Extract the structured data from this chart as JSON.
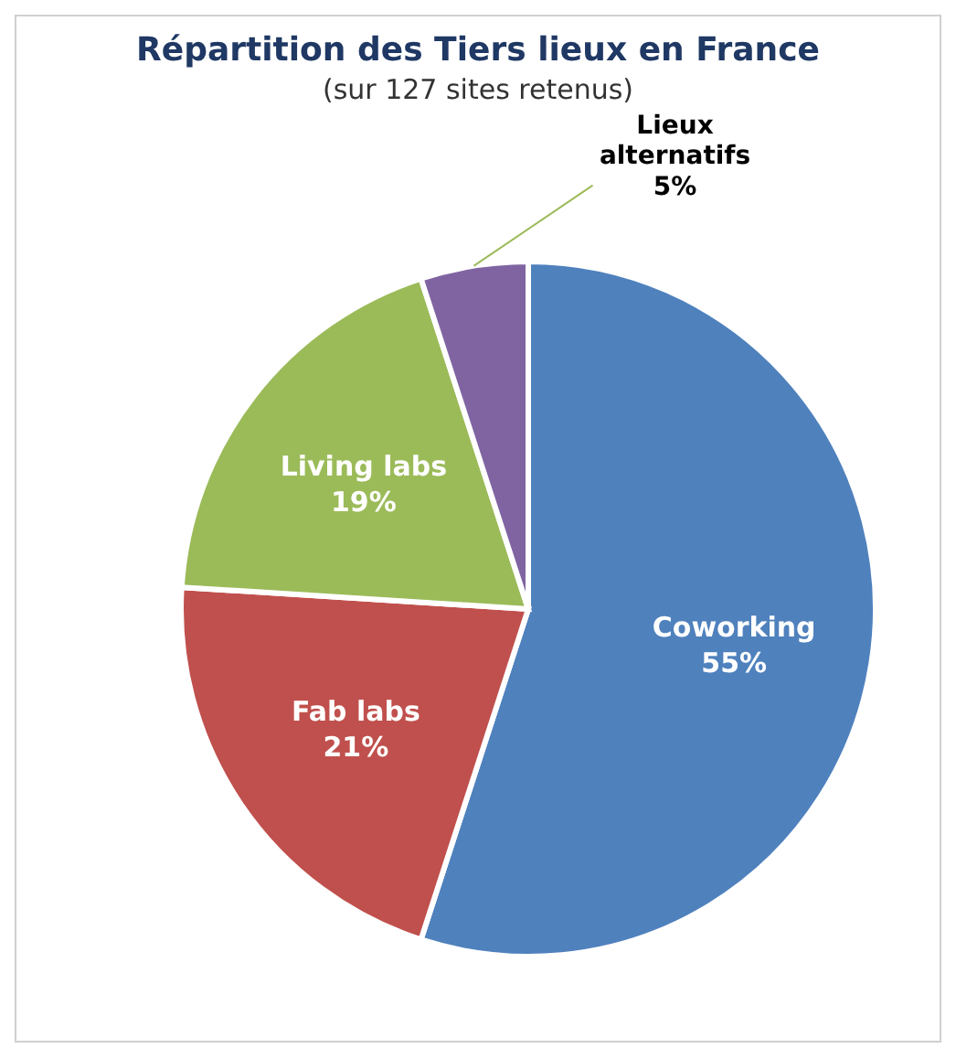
{
  "chart_data": {
    "type": "pie",
    "title": "Répartition des Tiers lieux en France",
    "subtitle": "(sur 127 sites retenus)",
    "categories": [
      "Coworking",
      "Fab labs",
      "Living labs",
      "Lieux alternatifs"
    ],
    "values": [
      55,
      21,
      19,
      5
    ],
    "colors": [
      "#4f81bd",
      "#c0504d",
      "#9bbb59",
      "#8064a2"
    ],
    "value_labels": [
      "55%",
      "21%",
      "19%",
      "5%"
    ],
    "legend": false
  }
}
